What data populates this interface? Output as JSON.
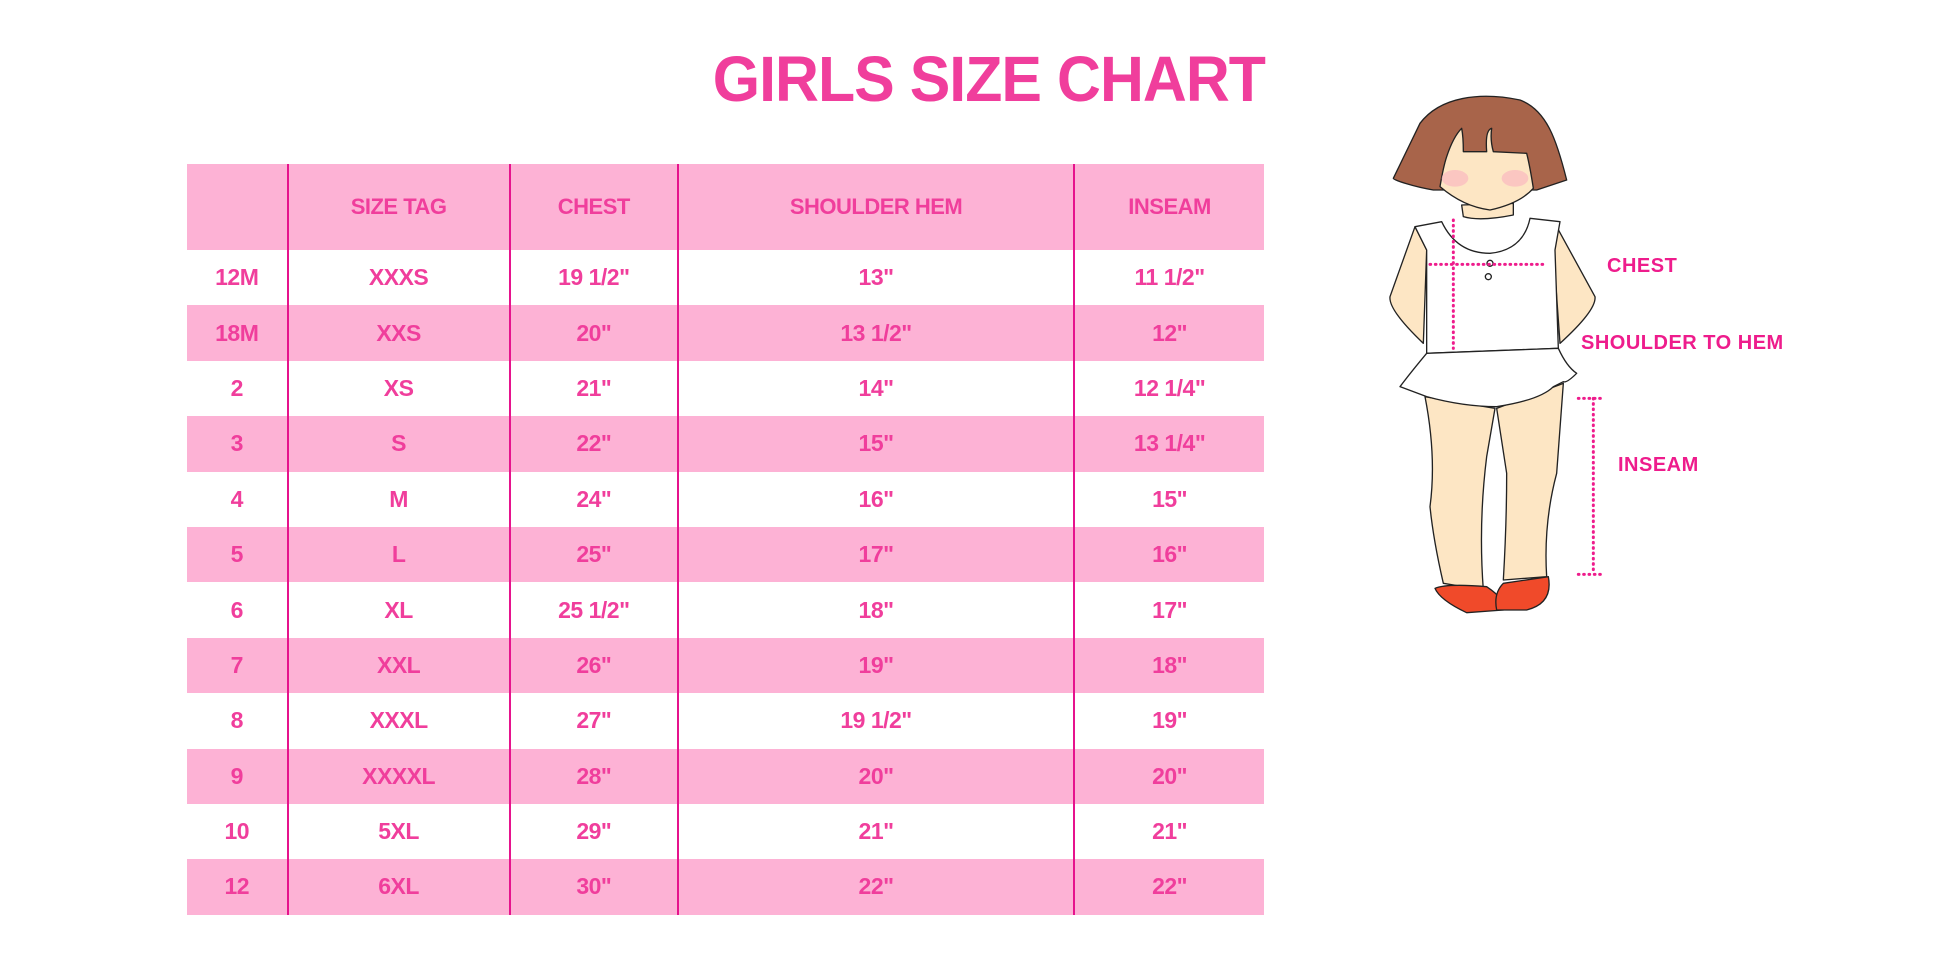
{
  "title": "GIRLS SIZE CHART",
  "colors": {
    "accent": "#f03e9c",
    "row_pink": "#fdb2d5",
    "divider": "#e6138d",
    "hair": "#a8644a",
    "skin": "#fde6c4",
    "shoes": "#f04a2a"
  },
  "table": {
    "headers": [
      "",
      "SIZE TAG",
      "CHEST",
      "SHOULDER HEM",
      "INSEAM"
    ],
    "rows": [
      [
        "12M",
        "XXXS",
        "19 1/2\"",
        "13\"",
        "11 1/2\""
      ],
      [
        "18M",
        "XXS",
        "20\"",
        "13 1/2\"",
        "12\""
      ],
      [
        "2",
        "XS",
        "21\"",
        "14\"",
        "12 1/4\""
      ],
      [
        "3",
        "S",
        "22\"",
        "15\"",
        "13 1/4\""
      ],
      [
        "4",
        "M",
        "24\"",
        "16\"",
        "15\""
      ],
      [
        "5",
        "L",
        "25\"",
        "17\"",
        "16\""
      ],
      [
        "6",
        "XL",
        "25 1/2\"",
        "18\"",
        "17\""
      ],
      [
        "7",
        "XXL",
        "26\"",
        "19\"",
        "18\""
      ],
      [
        "8",
        "XXXL",
        "27\"",
        "19 1/2\"",
        "19\""
      ],
      [
        "9",
        "XXXXL",
        "28\"",
        "20\"",
        "20\""
      ],
      [
        "10",
        "5XL",
        "29\"",
        "21\"",
        "21\""
      ],
      [
        "12",
        "6XL",
        "30\"",
        "22\"",
        "22\""
      ]
    ]
  },
  "figure": {
    "labels": {
      "chest": "CHEST",
      "shoulder": "SHOULDER TO HEM",
      "inseam": "INSEAM"
    }
  }
}
